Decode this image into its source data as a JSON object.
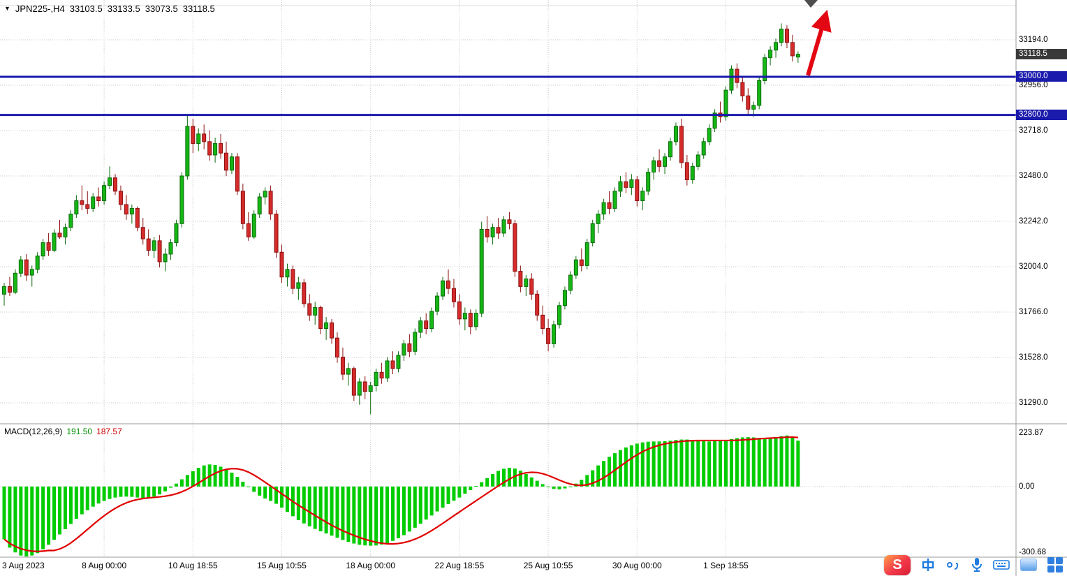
{
  "header": {
    "marker": "▼",
    "symbol_period": "JPN225-,H4",
    "open": "33103.5",
    "high": "33133.5",
    "low": "33073.5",
    "close": "33118.5"
  },
  "taskbar": {
    "logo_letter": "S",
    "ime_mode": "中",
    "ime_punct": "。，"
  },
  "chart_data": {
    "type": "candlestick",
    "title": "JPN225-,H4",
    "symbol": "JPN225-",
    "timeframe": "H4",
    "quote": {
      "open": 33103.5,
      "high": 33133.5,
      "low": 33073.5,
      "close": 33118.5
    },
    "price_axis": {
      "min": 31180,
      "max": 33403,
      "ticks": [
        [
          33194.0,
          "33194.0"
        ],
        [
          32956.0,
          "32956.0"
        ],
        [
          32718.0,
          "32718.0"
        ],
        [
          32480.0,
          "32480.0"
        ],
        [
          32242.0,
          "32242.0"
        ],
        [
          32004.0,
          "32004.0"
        ],
        [
          31766.0,
          "31766.0"
        ],
        [
          31528.0,
          "31528.0"
        ],
        [
          31290.0,
          "31290.0"
        ]
      ],
      "current": {
        "price": 33118.5,
        "text": "33118.5"
      }
    },
    "levels": [
      {
        "price": 33000.0,
        "text": "33000.0"
      },
      {
        "price": 32800.0,
        "text": "32800.0"
      }
    ],
    "time_labels": [
      [
        0,
        "3 Aug 2023"
      ],
      [
        18,
        "8 Aug 00:00"
      ],
      [
        34,
        "10 Aug 18:55"
      ],
      [
        50,
        "15 Aug 10:55"
      ],
      [
        66,
        "18 Aug 00:00"
      ],
      [
        82,
        "22 Aug 18:55"
      ],
      [
        98,
        "25 Aug 10:55"
      ],
      [
        114,
        "30 Aug 00:00"
      ],
      [
        130,
        "1 Sep 18:55"
      ]
    ],
    "candles": [
      [
        31860,
        31920,
        31800,
        31900
      ],
      [
        31900,
        31950,
        31850,
        31870
      ],
      [
        31870,
        31990,
        31860,
        31970
      ],
      [
        31970,
        32060,
        31950,
        32040
      ],
      [
        32040,
        32070,
        31930,
        31960
      ],
      [
        31960,
        32010,
        31900,
        31990
      ],
      [
        31990,
        32080,
        31970,
        32060
      ],
      [
        32060,
        32150,
        32040,
        32130
      ],
      [
        32130,
        32180,
        32060,
        32090
      ],
      [
        32090,
        32200,
        32080,
        32180
      ],
      [
        32180,
        32250,
        32150,
        32160
      ],
      [
        32160,
        32230,
        32120,
        32210
      ],
      [
        32210,
        32300,
        32190,
        32280
      ],
      [
        32280,
        32380,
        32260,
        32350
      ],
      [
        32350,
        32430,
        32300,
        32330
      ],
      [
        32330,
        32400,
        32280,
        32310
      ],
      [
        32310,
        32390,
        32290,
        32370
      ],
      [
        32370,
        32420,
        32320,
        32350
      ],
      [
        32350,
        32450,
        32330,
        32430
      ],
      [
        32430,
        32530,
        32410,
        32470
      ],
      [
        32470,
        32490,
        32380,
        32400
      ],
      [
        32400,
        32430,
        32300,
        32330
      ],
      [
        32330,
        32380,
        32250,
        32280
      ],
      [
        32280,
        32330,
        32230,
        32310
      ],
      [
        32310,
        32320,
        32190,
        32210
      ],
      [
        32210,
        32260,
        32120,
        32150
      ],
      [
        32150,
        32200,
        32060,
        32090
      ],
      [
        32090,
        32160,
        32050,
        32140
      ],
      [
        32140,
        32170,
        32000,
        32030
      ],
      [
        32030,
        32100,
        31980,
        32070
      ],
      [
        32070,
        32150,
        32040,
        32130
      ],
      [
        32130,
        32250,
        32110,
        32230
      ],
      [
        32230,
        32500,
        32210,
        32480
      ],
      [
        32480,
        32800,
        32460,
        32740
      ],
      [
        32740,
        32780,
        32600,
        32650
      ],
      [
        32650,
        32730,
        32610,
        32700
      ],
      [
        32700,
        32750,
        32620,
        32660
      ],
      [
        32660,
        32720,
        32560,
        32590
      ],
      [
        32590,
        32680,
        32550,
        32650
      ],
      [
        32650,
        32700,
        32570,
        32600
      ],
      [
        32600,
        32660,
        32480,
        32510
      ],
      [
        32510,
        32600,
        32490,
        32580
      ],
      [
        32580,
        32600,
        32380,
        32400
      ],
      [
        32400,
        32440,
        32200,
        32230
      ],
      [
        32230,
        32290,
        32140,
        32160
      ],
      [
        32160,
        32300,
        32150,
        32280
      ],
      [
        32280,
        32390,
        32260,
        32370
      ],
      [
        32370,
        32420,
        32330,
        32400
      ],
      [
        32400,
        32430,
        32250,
        32280
      ],
      [
        32280,
        32300,
        32050,
        32080
      ],
      [
        32080,
        32120,
        31920,
        31950
      ],
      [
        31950,
        32020,
        31900,
        31990
      ],
      [
        31990,
        32010,
        31860,
        31890
      ],
      [
        31890,
        31950,
        31830,
        31920
      ],
      [
        31920,
        31940,
        31790,
        31810
      ],
      [
        31810,
        31860,
        31720,
        31750
      ],
      [
        31750,
        31820,
        31700,
        31790
      ],
      [
        31790,
        31800,
        31650,
        31680
      ],
      [
        31680,
        31740,
        31620,
        31710
      ],
      [
        31710,
        31730,
        31600,
        31630
      ],
      [
        31630,
        31660,
        31500,
        31530
      ],
      [
        31530,
        31580,
        31410,
        31440
      ],
      [
        31440,
        31500,
        31380,
        31470
      ],
      [
        31470,
        31480,
        31300,
        31330
      ],
      [
        31330,
        31420,
        31280,
        31400
      ],
      [
        31400,
        31430,
        31310,
        31350
      ],
      [
        31350,
        31400,
        31230,
        31380
      ],
      [
        31380,
        31470,
        31350,
        31450
      ],
      [
        31450,
        31500,
        31390,
        31420
      ],
      [
        31420,
        31530,
        31400,
        31510
      ],
      [
        31510,
        31560,
        31440,
        31470
      ],
      [
        31470,
        31560,
        31450,
        31540
      ],
      [
        31540,
        31620,
        31510,
        31600
      ],
      [
        31600,
        31650,
        31530,
        31560
      ],
      [
        31560,
        31680,
        31540,
        31660
      ],
      [
        31660,
        31740,
        31630,
        31720
      ],
      [
        31720,
        31760,
        31650,
        31680
      ],
      [
        31680,
        31790,
        31660,
        31770
      ],
      [
        31770,
        31870,
        31750,
        31850
      ],
      [
        31850,
        31950,
        31830,
        31930
      ],
      [
        31930,
        31990,
        31860,
        31890
      ],
      [
        31890,
        31940,
        31790,
        31820
      ],
      [
        31820,
        31860,
        31700,
        31730
      ],
      [
        31730,
        31790,
        31670,
        31760
      ],
      [
        31760,
        31780,
        31650,
        31690
      ],
      [
        31690,
        31780,
        31670,
        31760
      ],
      [
        31760,
        32240,
        31740,
        32200
      ],
      [
        32200,
        32270,
        32130,
        32160
      ],
      [
        32160,
        32230,
        32120,
        32210
      ],
      [
        32210,
        32260,
        32150,
        32180
      ],
      [
        32180,
        32270,
        32160,
        32250
      ],
      [
        32250,
        32290,
        32200,
        32230
      ],
      [
        32230,
        32250,
        31950,
        31980
      ],
      [
        31980,
        32010,
        31870,
        31900
      ],
      [
        31900,
        31960,
        31850,
        31940
      ],
      [
        31940,
        31970,
        31830,
        31860
      ],
      [
        31860,
        31880,
        31720,
        31750
      ],
      [
        31750,
        31800,
        31650,
        31680
      ],
      [
        31680,
        31730,
        31560,
        31600
      ],
      [
        31600,
        31720,
        31580,
        31700
      ],
      [
        31700,
        31820,
        31680,
        31800
      ],
      [
        31800,
        31900,
        31780,
        31880
      ],
      [
        31880,
        31980,
        31860,
        31960
      ],
      [
        31960,
        32060,
        31940,
        32040
      ],
      [
        32040,
        32100,
        31980,
        32010
      ],
      [
        32010,
        32150,
        31990,
        32130
      ],
      [
        32130,
        32250,
        32110,
        32230
      ],
      [
        32230,
        32300,
        32180,
        32280
      ],
      [
        32280,
        32360,
        32250,
        32340
      ],
      [
        32340,
        32400,
        32280,
        32310
      ],
      [
        32310,
        32420,
        32290,
        32400
      ],
      [
        32400,
        32480,
        32370,
        32450
      ],
      [
        32450,
        32500,
        32390,
        32420
      ],
      [
        32420,
        32490,
        32380,
        32460
      ],
      [
        32460,
        32480,
        32320,
        32350
      ],
      [
        32350,
        32420,
        32300,
        32400
      ],
      [
        32400,
        32520,
        32380,
        32500
      ],
      [
        32500,
        32580,
        32460,
        32560
      ],
      [
        32560,
        32620,
        32500,
        32530
      ],
      [
        32530,
        32600,
        32490,
        32580
      ],
      [
        32580,
        32680,
        32560,
        32660
      ],
      [
        32660,
        32760,
        32640,
        32740
      ],
      [
        32740,
        32780,
        32520,
        32550
      ],
      [
        32550,
        32590,
        32430,
        32460
      ],
      [
        32460,
        32550,
        32440,
        32530
      ],
      [
        32530,
        32610,
        32510,
        32590
      ],
      [
        32590,
        32680,
        32570,
        32660
      ],
      [
        32660,
        32750,
        32640,
        32730
      ],
      [
        32730,
        32830,
        32710,
        32810
      ],
      [
        32810,
        32870,
        32760,
        32790
      ],
      [
        32790,
        32950,
        32770,
        32930
      ],
      [
        32930,
        33060,
        32910,
        33040
      ],
      [
        33040,
        33070,
        32940,
        32970
      ],
      [
        32970,
        33000,
        32870,
        32900
      ],
      [
        32900,
        32940,
        32800,
        32830
      ],
      [
        32830,
        32870,
        32790,
        32850
      ],
      [
        32850,
        33000,
        32830,
        32980
      ],
      [
        32980,
        33120,
        32960,
        33100
      ],
      [
        33100,
        33160,
        33060,
        33140
      ],
      [
        33140,
        33200,
        33100,
        33180
      ],
      [
        33180,
        33280,
        33160,
        33250
      ],
      [
        33250,
        33270,
        33150,
        33180
      ],
      [
        33180,
        33220,
        33080,
        33110
      ],
      [
        33103.5,
        33133.5,
        33073.5,
        33118.5
      ]
    ],
    "macd": {
      "label": "MACD(12,26,9)",
      "main_text": "191.50",
      "signal_text": "187.57",
      "main_value": 191.5,
      "signal_value": 187.57,
      "signal_period": 9,
      "axis": [
        [
          223.87,
          "223.87"
        ],
        [
          0,
          "0.00"
        ],
        [
          -300.68,
          "-300.68"
        ]
      ],
      "histogram": [
        -220,
        -255,
        -275,
        -288,
        -292,
        -288,
        -278,
        -262,
        -243,
        -222,
        -200,
        -178,
        -156,
        -135,
        -116,
        -99,
        -84,
        -71,
        -60,
        -52,
        -46,
        -43,
        -42,
        -43,
        -46,
        -48,
        -47,
        -42,
        -33,
        -20,
        -5,
        12,
        30,
        48,
        64,
        78,
        88,
        92,
        90,
        83,
        72,
        58,
        40,
        20,
        -2,
        -22,
        -38,
        -50,
        -60,
        -72,
        -88,
        -106,
        -124,
        -140,
        -154,
        -166,
        -177,
        -187,
        -196,
        -205,
        -214,
        -223,
        -231,
        -238,
        -243,
        -246,
        -247,
        -246,
        -242,
        -236,
        -227,
        -216,
        -203,
        -188,
        -172,
        -155,
        -138,
        -121,
        -104,
        -88,
        -73,
        -59,
        -46,
        -30,
        -15,
        2,
        18,
        35,
        52,
        65,
        74,
        78,
        75,
        66,
        52,
        38,
        24,
        10,
        -2,
        -10,
        -12,
        -8,
        0,
        12,
        28,
        48,
        68,
        88,
        107,
        124,
        139,
        152,
        163,
        172,
        179,
        184,
        187,
        188,
        188,
        189,
        191,
        194,
        196,
        196,
        194,
        191,
        189,
        188,
        189,
        191,
        194,
        198,
        202,
        205,
        206,
        205,
        203,
        202,
        203,
        206,
        210,
        213,
        208,
        191.5
      ]
    },
    "annotations": [
      {
        "type": "up-arrow",
        "color": "#e30613"
      }
    ],
    "colors": {
      "up": "#15b715",
      "up_border": "#0a6a0a",
      "down": "#d62b2b",
      "down_border": "#8b1010",
      "grid": "#c9c9c9",
      "separator": "#9a9a9a",
      "level_line": "#1a1aad",
      "badge_current_bg": "#3a3a3a",
      "badge_level_bg": "#1a1aad",
      "macd_hist": "#00cc00",
      "macd_signal": "#e00000"
    }
  }
}
